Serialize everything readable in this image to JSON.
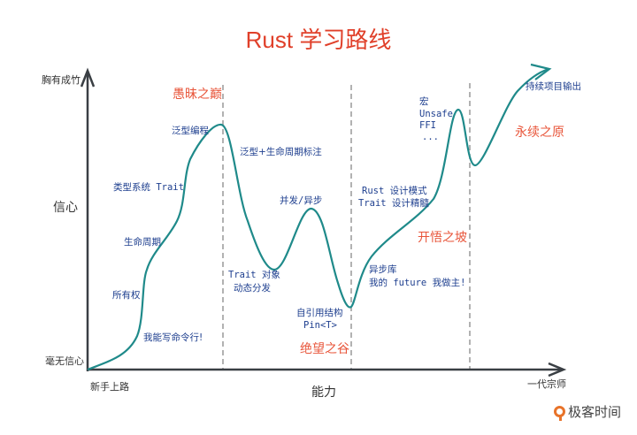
{
  "title": "Rust 学习路线",
  "axes": {
    "y_top": "胸有成竹",
    "y_mid": "信心",
    "y_bottom": "毫无信心",
    "x_start": "新手上路",
    "x_mid": "能力",
    "x_end": "一代宗师"
  },
  "zones": {
    "peak": "愚昧之巅",
    "valley": "绝望之谷",
    "slope": "开悟之坡",
    "plateau": "永续之原"
  },
  "milestones": {
    "cli": "我能写命令行!",
    "ownership": "所有权",
    "lifetime": "生命周期",
    "type_system": "类型系统 Trait",
    "generics": "泛型编程",
    "generics_lifetime": "泛型+生命周期标注",
    "trait_object": "Trait 对象",
    "dynamic_dispatch": "动态分发",
    "concurrency": "并发/异步",
    "self_ref": "自引用结构",
    "pin": "Pin<T>",
    "async_lib": "异步库",
    "my_future": "我的 future 我做主!",
    "design_patterns": "Rust 设计模式",
    "trait_design": "Trait 设计精髓",
    "macro": "宏",
    "unsafe": "Unsafe",
    "ffi": "FFI",
    "ellipsis": "...",
    "output": "持续项目输出"
  },
  "brand": "极客时间",
  "colors": {
    "title": "#e0402a",
    "zone": "#e8553a",
    "label": "#1e3f8f",
    "curve": "#1f8a8a",
    "axis": "#3a3f44",
    "divider": "#999999",
    "brand": "#e8732a"
  },
  "icons": {
    "brand_logo": "geektime-logo-icon"
  }
}
